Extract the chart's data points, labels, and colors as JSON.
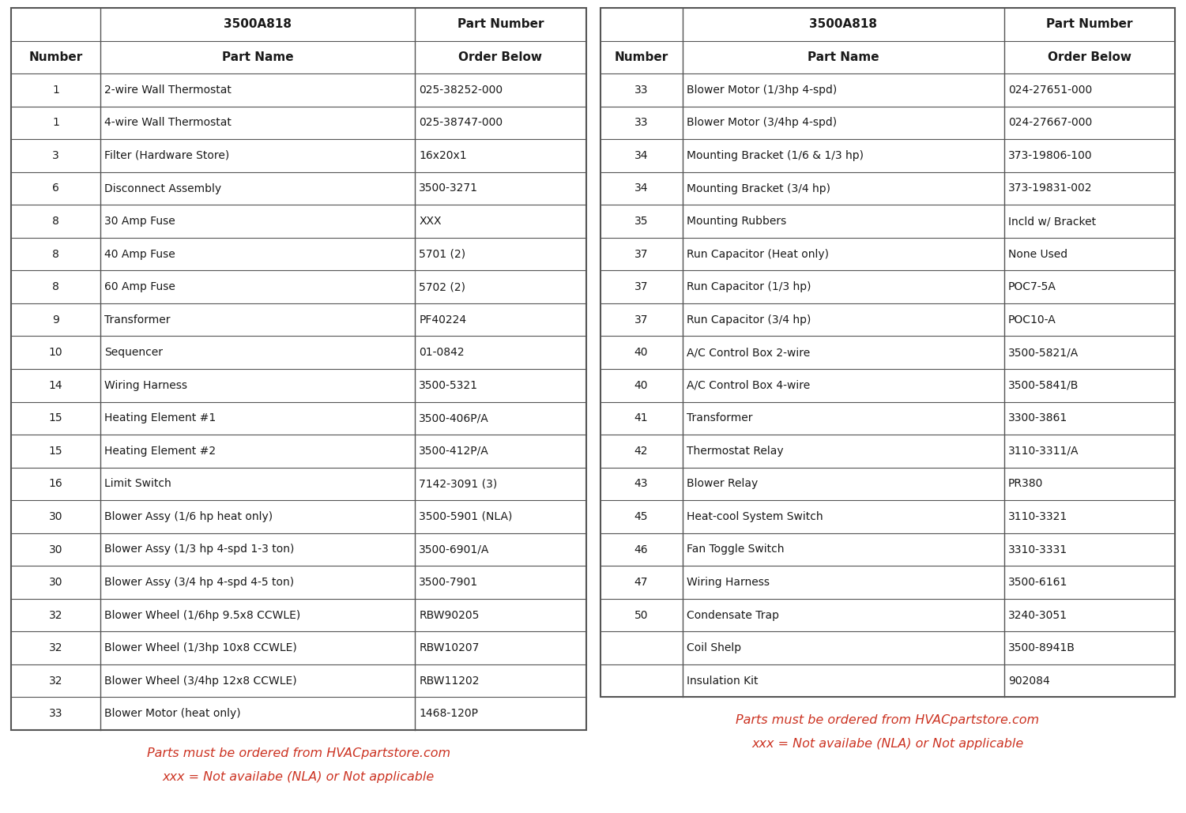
{
  "bg_color": "#ffffff",
  "table_bg": "#ffffff",
  "border_color": "#555555",
  "text_color": "#1a1a1a",
  "red_color": "#cc3322",
  "left_rows": [
    [
      "1",
      "2-wire Wall Thermostat",
      "025-38252-000"
    ],
    [
      "1",
      "4-wire Wall Thermostat",
      "025-38747-000"
    ],
    [
      "3",
      "Filter (Hardware Store)",
      "16x20x1"
    ],
    [
      "6",
      "Disconnect Assembly",
      "3500-3271"
    ],
    [
      "8",
      "30 Amp Fuse",
      "XXX"
    ],
    [
      "8",
      "40 Amp Fuse",
      "5701 (2)"
    ],
    [
      "8",
      "60 Amp Fuse",
      "5702 (2)"
    ],
    [
      "9",
      "Transformer",
      "PF40224"
    ],
    [
      "10",
      "Sequencer",
      "01-0842"
    ],
    [
      "14",
      "Wiring Harness",
      "3500-5321"
    ],
    [
      "15",
      "Heating Element #1",
      "3500-406P/A"
    ],
    [
      "15",
      "Heating Element #2",
      "3500-412P/A"
    ],
    [
      "16",
      "Limit Switch",
      "7142-3091 (3)"
    ],
    [
      "30",
      "Blower Assy (1/6 hp heat only)",
      "3500-5901 (NLA)"
    ],
    [
      "30",
      "Blower Assy (1/3 hp 4-spd 1-3 ton)",
      "3500-6901/A"
    ],
    [
      "30",
      "Blower Assy (3/4 hp 4-spd 4-5 ton)",
      "3500-7901"
    ],
    [
      "32",
      "Blower Wheel (1/6hp 9.5x8 CCWLE)",
      "RBW90205"
    ],
    [
      "32",
      "Blower Wheel (1/3hp 10x8 CCWLE)",
      "RBW10207"
    ],
    [
      "32",
      "Blower Wheel (3/4hp 12x8 CCWLE)",
      "RBW11202"
    ],
    [
      "33",
      "Blower Motor (heat only)",
      "1468-120P"
    ]
  ],
  "right_rows": [
    [
      "33",
      "Blower Motor (1/3hp 4-spd)",
      "024-27651-000"
    ],
    [
      "33",
      "Blower Motor (3/4hp 4-spd)",
      "024-27667-000"
    ],
    [
      "34",
      "Mounting Bracket (1/6 & 1/3 hp)",
      "373-19806-100"
    ],
    [
      "34",
      "Mounting Bracket (3/4 hp)",
      "373-19831-002"
    ],
    [
      "35",
      "Mounting Rubbers",
      "Incld w/ Bracket"
    ],
    [
      "37",
      "Run Capacitor (Heat only)",
      "None Used"
    ],
    [
      "37",
      "Run Capacitor (1/3 hp)",
      "POC7-5A"
    ],
    [
      "37",
      "Run Capacitor (3/4 hp)",
      "POC10-A"
    ],
    [
      "40",
      "A/C Control Box 2-wire",
      "3500-5821/A"
    ],
    [
      "40",
      "A/C Control Box 4-wire",
      "3500-5841/B"
    ],
    [
      "41",
      "Transformer",
      "3300-3861"
    ],
    [
      "42",
      "Thermostat Relay",
      "3110-3311/A"
    ],
    [
      "43",
      "Blower Relay",
      "PR380"
    ],
    [
      "45",
      "Heat-cool System Switch",
      "3110-3321"
    ],
    [
      "46",
      "Fan Toggle Switch",
      "3310-3331"
    ],
    [
      "47",
      "Wiring Harness",
      "3500-6161"
    ],
    [
      "50",
      "Condensate Trap",
      "3240-3051"
    ],
    [
      "",
      "Coil Shelp",
      "3500-8941B"
    ],
    [
      "",
      "Insulation Kit",
      "902084"
    ]
  ],
  "footer_line1": "Parts must be ordered from HVACpartstore.com",
  "footer_line2": "xxx = Not availabe (NLA) or Not applicable"
}
